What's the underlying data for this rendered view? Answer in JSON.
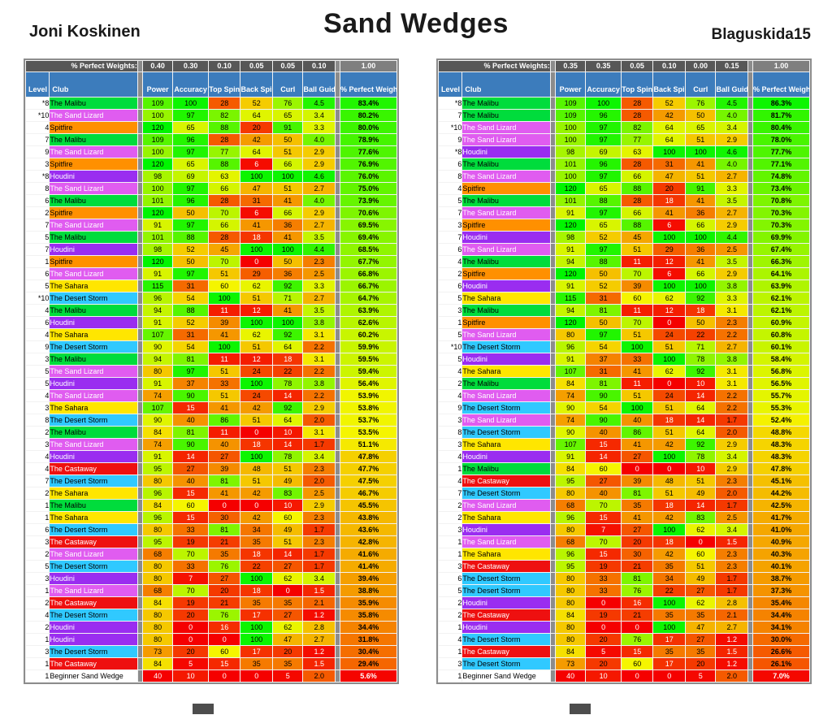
{
  "page": {
    "title": "Sand Wedges"
  },
  "colors": {
    "header_bg": "#3C7CBC",
    "weights_bg": "#575757",
    "weights_total_bg": "#7F7F7F",
    "panel_bg": "#8C8C8C",
    "heat_low": "#F00000",
    "heat_mid": "#F0F000",
    "heat_high": "#00F000"
  },
  "clubs": {
    "The Malibu": {
      "bg": "#00DC3C",
      "fg": "#000000"
    },
    "The Sand Lizard": {
      "bg": "#E05CF0",
      "fg": "#FFFFFF"
    },
    "Spitfire": {
      "bg": "#FF9000",
      "fg": "#000000"
    },
    "Houdini": {
      "bg": "#9A2DF0",
      "fg": "#FFFFFF"
    },
    "The Sahara": {
      "bg": "#FFE600",
      "fg": "#000000"
    },
    "The Desert Storm": {
      "bg": "#30C9FF",
      "fg": "#000000"
    },
    "The Castaway": {
      "bg": "#EE1010",
      "fg": "#FFFFFF"
    },
    "Beginner Sand Wedge": {
      "bg": "#FFFFFF",
      "fg": "#000000"
    }
  },
  "tables": [
    {
      "player": "Joni Koskinen",
      "weights_label": "% Perfect Weights:",
      "weights": [
        "0.40",
        "0.30",
        "0.10",
        "0.05",
        "0.05",
        "0.10"
      ],
      "weights_total": "1.00",
      "headers": {
        "level": "Level",
        "club": "Club",
        "stats": [
          "Power",
          "Accuracy",
          "Top Spin",
          "Back\nSpin",
          "Curl",
          "Ball\nGuide"
        ],
        "weighted": "% Perfect\nWeighted↓"
      },
      "rows": [
        [
          "*8",
          "The Malibu",
          "109",
          "100",
          "28",
          "52",
          "76",
          "4.5",
          "83.4%"
        ],
        [
          "*10",
          "The Sand Lizard",
          "100",
          "97",
          "82",
          "64",
          "65",
          "3.4",
          "80.2%"
        ],
        [
          "4",
          "Spitfire",
          "120",
          "65",
          "88",
          "20",
          "91",
          "3.3",
          "80.0%"
        ],
        [
          "7",
          "The Malibu",
          "109",
          "96",
          "28",
          "42",
          "50",
          "4.0",
          "78.9%"
        ],
        [
          "9",
          "The Sand Lizard",
          "100",
          "97",
          "77",
          "64",
          "51",
          "2.9",
          "77.6%"
        ],
        [
          "3",
          "Spitfire",
          "120",
          "65",
          "88",
          "6",
          "66",
          "2.9",
          "76.9%"
        ],
        [
          "*8",
          "Houdini",
          "98",
          "69",
          "63",
          "100",
          "100",
          "4.6",
          "76.0%"
        ],
        [
          "8",
          "The Sand Lizard",
          "100",
          "97",
          "66",
          "47",
          "51",
          "2.7",
          "75.0%"
        ],
        [
          "6",
          "The Malibu",
          "101",
          "96",
          "28",
          "31",
          "41",
          "4.0",
          "73.9%"
        ],
        [
          "2",
          "Spitfire",
          "120",
          "50",
          "70",
          "6",
          "66",
          "2.9",
          "70.6%"
        ],
        [
          "7",
          "The Sand Lizard",
          "91",
          "97",
          "66",
          "41",
          "36",
          "2.7",
          "69.5%"
        ],
        [
          "5",
          "The Malibu",
          "101",
          "88",
          "28",
          "18",
          "41",
          "3.5",
          "69.4%"
        ],
        [
          "7",
          "Houdini",
          "98",
          "52",
          "45",
          "100",
          "100",
          "4.4",
          "68.5%"
        ],
        [
          "1",
          "Spitfire",
          "120",
          "50",
          "70",
          "0",
          "50",
          "2.3",
          "67.7%"
        ],
        [
          "6",
          "The Sand Lizard",
          "91",
          "97",
          "51",
          "29",
          "36",
          "2.5",
          "66.8%"
        ],
        [
          "5",
          "The Sahara",
          "115",
          "31",
          "60",
          "62",
          "92",
          "3.3",
          "66.7%"
        ],
        [
          "*10",
          "The Desert Storm",
          "96",
          "54",
          "100",
          "51",
          "71",
          "2.7",
          "64.7%"
        ],
        [
          "4",
          "The Malibu",
          "94",
          "88",
          "11",
          "12",
          "41",
          "3.5",
          "63.9%"
        ],
        [
          "6",
          "Houdini",
          "91",
          "52",
          "39",
          "100",
          "100",
          "3.8",
          "62.6%"
        ],
        [
          "4",
          "The Sahara",
          "107",
          "31",
          "41",
          "62",
          "92",
          "3.1",
          "60.2%"
        ],
        [
          "9",
          "The Desert Storm",
          "90",
          "54",
          "100",
          "51",
          "64",
          "2.2",
          "59.9%"
        ],
        [
          "3",
          "The Malibu",
          "94",
          "81",
          "11",
          "12",
          "18",
          "3.1",
          "59.5%"
        ],
        [
          "5",
          "The Sand Lizard",
          "80",
          "97",
          "51",
          "24",
          "22",
          "2.2",
          "59.4%"
        ],
        [
          "5",
          "Houdini",
          "91",
          "37",
          "33",
          "100",
          "78",
          "3.8",
          "56.4%"
        ],
        [
          "4",
          "The Sand Lizard",
          "74",
          "90",
          "51",
          "24",
          "14",
          "2.2",
          "53.9%"
        ],
        [
          "3",
          "The Sahara",
          "107",
          "15",
          "41",
          "42",
          "92",
          "2.9",
          "53.8%"
        ],
        [
          "8",
          "The Desert Storm",
          "90",
          "40",
          "86",
          "51",
          "64",
          "2.0",
          "53.7%"
        ],
        [
          "2",
          "The Malibu",
          "84",
          "81",
          "11",
          "0",
          "10",
          "3.1",
          "53.5%"
        ],
        [
          "3",
          "The Sand Lizard",
          "74",
          "90",
          "40",
          "18",
          "14",
          "1.7",
          "51.1%"
        ],
        [
          "4",
          "Houdini",
          "91",
          "14",
          "27",
          "100",
          "78",
          "3.4",
          "47.8%"
        ],
        [
          "4",
          "The Castaway",
          "95",
          "27",
          "39",
          "48",
          "51",
          "2.3",
          "47.7%"
        ],
        [
          "7",
          "The Desert Storm",
          "80",
          "40",
          "81",
          "51",
          "49",
          "2.0",
          "47.5%"
        ],
        [
          "2",
          "The Sahara",
          "96",
          "15",
          "41",
          "42",
          "83",
          "2.5",
          "46.7%"
        ],
        [
          "1",
          "The Malibu",
          "84",
          "60",
          "0",
          "0",
          "10",
          "2.9",
          "45.5%"
        ],
        [
          "1",
          "The Sahara",
          "96",
          "15",
          "30",
          "42",
          "60",
          "2.3",
          "43.8%"
        ],
        [
          "6",
          "The Desert Storm",
          "80",
          "33",
          "81",
          "34",
          "49",
          "1.7",
          "43.6%"
        ],
        [
          "3",
          "The Castaway",
          "95",
          "19",
          "21",
          "35",
          "51",
          "2.3",
          "42.8%"
        ],
        [
          "2",
          "The Sand Lizard",
          "68",
          "70",
          "35",
          "18",
          "14",
          "1.7",
          "41.6%"
        ],
        [
          "5",
          "The Desert Storm",
          "80",
          "33",
          "76",
          "22",
          "27",
          "1.7",
          "41.4%"
        ],
        [
          "3",
          "Houdini",
          "80",
          "7",
          "27",
          "100",
          "62",
          "3.4",
          "39.4%"
        ],
        [
          "1",
          "The Sand Lizard",
          "68",
          "70",
          "20",
          "18",
          "0",
          "1.5",
          "38.8%"
        ],
        [
          "2",
          "The Castaway",
          "84",
          "19",
          "21",
          "35",
          "35",
          "2.1",
          "35.9%"
        ],
        [
          "4",
          "The Desert Storm",
          "80",
          "20",
          "76",
          "17",
          "27",
          "1.2",
          "35.8%"
        ],
        [
          "2",
          "Houdini",
          "80",
          "0",
          "16",
          "100",
          "62",
          "2.8",
          "34.4%"
        ],
        [
          "1",
          "Houdini",
          "80",
          "0",
          "0",
          "100",
          "47",
          "2.7",
          "31.8%"
        ],
        [
          "3",
          "The Desert Storm",
          "73",
          "20",
          "60",
          "17",
          "20",
          "1.2",
          "30.4%"
        ],
        [
          "1",
          "The Castaway",
          "84",
          "5",
          "15",
          "35",
          "35",
          "1.5",
          "29.4%"
        ],
        [
          "1",
          "Beginner Sand Wedge",
          "40",
          "10",
          "0",
          "0",
          "5",
          "2.0",
          "5.6%"
        ]
      ]
    },
    {
      "player": "Blaguskida15",
      "weights_label": "% Perfect Weights:",
      "weights": [
        "0.35",
        "0.35",
        "0.05",
        "0.10",
        "0.00",
        "0.15"
      ],
      "weights_total": "1.00",
      "headers": {
        "level": "Level",
        "club": "Club",
        "stats": [
          "Power",
          "Accuracy",
          "Top Spin",
          "Back\nSpin",
          "Curl",
          "Ball\nGuide"
        ],
        "weighted": "% Perfect\nWeighted↓"
      },
      "rows": [
        [
          "*8",
          "The Malibu",
          "109",
          "100",
          "28",
          "52",
          "76",
          "4.5",
          "86.3%"
        ],
        [
          "7",
          "The Malibu",
          "109",
          "96",
          "28",
          "42",
          "50",
          "4.0",
          "81.7%"
        ],
        [
          "*10",
          "The Sand Lizard",
          "100",
          "97",
          "82",
          "64",
          "65",
          "3.4",
          "80.4%"
        ],
        [
          "9",
          "The Sand Lizard",
          "100",
          "97",
          "77",
          "64",
          "51",
          "2.9",
          "78.0%"
        ],
        [
          "*8",
          "Houdini",
          "98",
          "69",
          "63",
          "100",
          "100",
          "4.6",
          "77.7%"
        ],
        [
          "6",
          "The Malibu",
          "101",
          "96",
          "28",
          "31",
          "41",
          "4.0",
          "77.1%"
        ],
        [
          "8",
          "The Sand Lizard",
          "100",
          "97",
          "66",
          "47",
          "51",
          "2.7",
          "74.8%"
        ],
        [
          "4",
          "Spitfire",
          "120",
          "65",
          "88",
          "20",
          "91",
          "3.3",
          "73.4%"
        ],
        [
          "5",
          "The Malibu",
          "101",
          "88",
          "28",
          "18",
          "41",
          "3.5",
          "70.8%"
        ],
        [
          "7",
          "The Sand Lizard",
          "91",
          "97",
          "66",
          "41",
          "36",
          "2.7",
          "70.3%"
        ],
        [
          "3",
          "Spitfire",
          "120",
          "65",
          "88",
          "6",
          "66",
          "2.9",
          "70.3%"
        ],
        [
          "7",
          "Houdini",
          "98",
          "52",
          "45",
          "100",
          "100",
          "4.4",
          "69.9%"
        ],
        [
          "6",
          "The Sand Lizard",
          "91",
          "97",
          "51",
          "29",
          "36",
          "2.5",
          "67.4%"
        ],
        [
          "4",
          "The Malibu",
          "94",
          "88",
          "11",
          "12",
          "41",
          "3.5",
          "66.3%"
        ],
        [
          "2",
          "Spitfire",
          "120",
          "50",
          "70",
          "6",
          "66",
          "2.9",
          "64.1%"
        ],
        [
          "6",
          "Houdini",
          "91",
          "52",
          "39",
          "100",
          "100",
          "3.8",
          "63.9%"
        ],
        [
          "5",
          "The Sahara",
          "115",
          "31",
          "60",
          "62",
          "92",
          "3.3",
          "62.1%"
        ],
        [
          "3",
          "The Malibu",
          "94",
          "81",
          "11",
          "12",
          "18",
          "3.1",
          "62.1%"
        ],
        [
          "1",
          "Spitfire",
          "120",
          "50",
          "70",
          "0",
          "50",
          "2.3",
          "60.9%"
        ],
        [
          "5",
          "The Sand Lizard",
          "80",
          "97",
          "51",
          "24",
          "22",
          "2.2",
          "60.8%"
        ],
        [
          "*10",
          "The Desert Storm",
          "96",
          "54",
          "100",
          "51",
          "71",
          "2.7",
          "60.1%"
        ],
        [
          "5",
          "Houdini",
          "91",
          "37",
          "33",
          "100",
          "78",
          "3.8",
          "58.4%"
        ],
        [
          "4",
          "The Sahara",
          "107",
          "31",
          "41",
          "62",
          "92",
          "3.1",
          "56.8%"
        ],
        [
          "2",
          "The Malibu",
          "84",
          "81",
          "11",
          "0",
          "10",
          "3.1",
          "56.5%"
        ],
        [
          "4",
          "The Sand Lizard",
          "74",
          "90",
          "51",
          "24",
          "14",
          "2.2",
          "55.7%"
        ],
        [
          "9",
          "The Desert Storm",
          "90",
          "54",
          "100",
          "51",
          "64",
          "2.2",
          "55.3%"
        ],
        [
          "3",
          "The Sand Lizard",
          "74",
          "90",
          "40",
          "18",
          "14",
          "1.7",
          "52.4%"
        ],
        [
          "8",
          "The Desert Storm",
          "90",
          "40",
          "86",
          "51",
          "64",
          "2.0",
          "48.8%"
        ],
        [
          "3",
          "The Sahara",
          "107",
          "15",
          "41",
          "42",
          "92",
          "2.9",
          "48.3%"
        ],
        [
          "4",
          "Houdini",
          "91",
          "14",
          "27",
          "100",
          "78",
          "3.4",
          "48.3%"
        ],
        [
          "1",
          "The Malibu",
          "84",
          "60",
          "0",
          "0",
          "10",
          "2.9",
          "47.8%"
        ],
        [
          "4",
          "The Castaway",
          "95",
          "27",
          "39",
          "48",
          "51",
          "2.3",
          "45.1%"
        ],
        [
          "7",
          "The Desert Storm",
          "80",
          "40",
          "81",
          "51",
          "49",
          "2.0",
          "44.2%"
        ],
        [
          "2",
          "The Sand Lizard",
          "68",
          "70",
          "35",
          "18",
          "14",
          "1.7",
          "42.5%"
        ],
        [
          "2",
          "The Sahara",
          "96",
          "15",
          "41",
          "42",
          "83",
          "2.5",
          "41.7%"
        ],
        [
          "3",
          "Houdini",
          "80",
          "7",
          "27",
          "100",
          "62",
          "3.4",
          "41.0%"
        ],
        [
          "1",
          "The Sand Lizard",
          "68",
          "70",
          "20",
          "18",
          "0",
          "1.5",
          "40.9%"
        ],
        [
          "1",
          "The Sahara",
          "96",
          "15",
          "30",
          "42",
          "60",
          "2.3",
          "40.3%"
        ],
        [
          "3",
          "The Castaway",
          "95",
          "19",
          "21",
          "35",
          "51",
          "2.3",
          "40.1%"
        ],
        [
          "6",
          "The Desert Storm",
          "80",
          "33",
          "81",
          "34",
          "49",
          "1.7",
          "38.7%"
        ],
        [
          "5",
          "The Desert Storm",
          "80",
          "33",
          "76",
          "22",
          "27",
          "1.7",
          "37.3%"
        ],
        [
          "2",
          "Houdini",
          "80",
          "0",
          "16",
          "100",
          "62",
          "2.8",
          "35.4%"
        ],
        [
          "2",
          "The Castaway",
          "84",
          "19",
          "21",
          "35",
          "35",
          "2.1",
          "34.4%"
        ],
        [
          "1",
          "Houdini",
          "80",
          "0",
          "0",
          "100",
          "47",
          "2.7",
          "34.1%"
        ],
        [
          "4",
          "The Desert Storm",
          "80",
          "20",
          "76",
          "17",
          "27",
          "1.2",
          "30.0%"
        ],
        [
          "1",
          "The Castaway",
          "84",
          "5",
          "15",
          "35",
          "35",
          "1.5",
          "26.6%"
        ],
        [
          "3",
          "The Desert Storm",
          "73",
          "20",
          "60",
          "17",
          "20",
          "1.2",
          "26.1%"
        ],
        [
          "1",
          "Beginner Sand Wedge",
          "40",
          "10",
          "0",
          "0",
          "5",
          "2.0",
          "7.0%"
        ]
      ]
    }
  ]
}
